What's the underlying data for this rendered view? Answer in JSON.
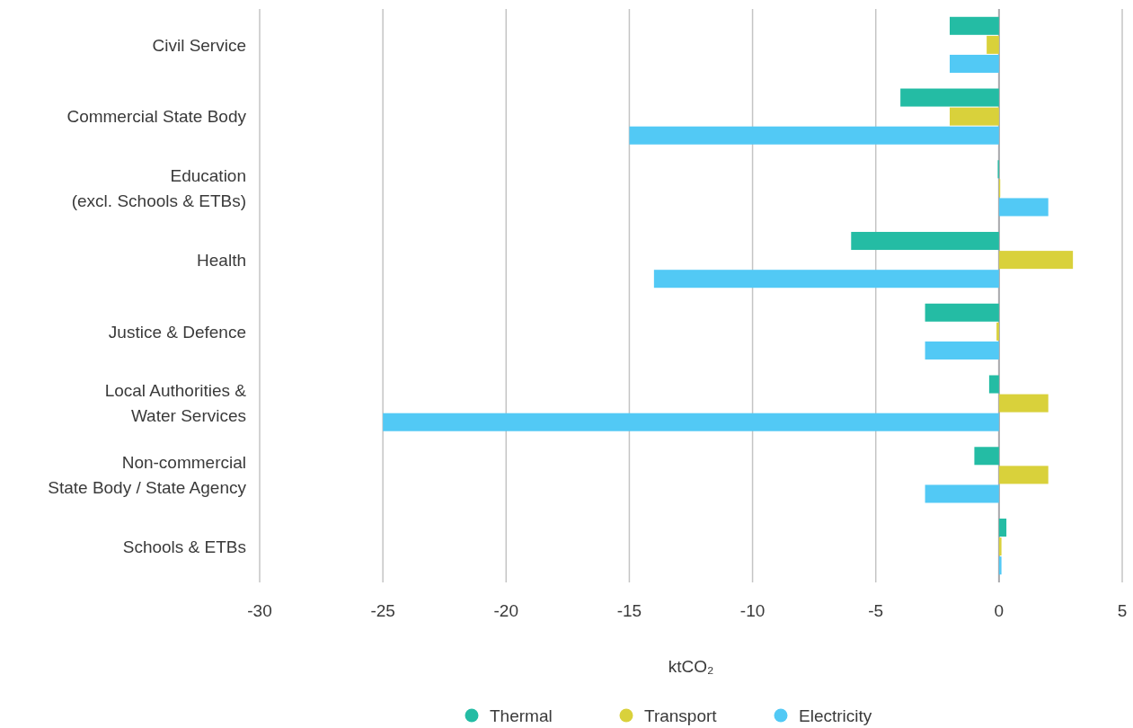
{
  "chart_data": {
    "type": "bar",
    "orientation": "horizontal",
    "categories": [
      "Civil Service",
      "Commercial State Body",
      "Education\n(excl. Schools & ETBs)",
      "Health",
      "Justice & Defence",
      "Local Authorities &\nWater Services",
      "Non-commercial\nState Body / State Agency",
      "Schools & ETBs"
    ],
    "series": [
      {
        "name": "Thermal",
        "color": "#24bca4",
        "values": [
          -2,
          -4,
          -0.05,
          -6,
          -3,
          -0.4,
          -1,
          0.3
        ]
      },
      {
        "name": "Transport",
        "color": "#d9d13b",
        "values": [
          -0.5,
          -2,
          0.05,
          3,
          -0.1,
          2,
          2,
          0.1
        ]
      },
      {
        "name": "Electricity",
        "color": "#52c9f5",
        "values": [
          -2,
          -15,
          2,
          -14,
          -3,
          -25,
          -3,
          0.1
        ]
      }
    ],
    "xlabel": "ktCO₂",
    "xlim": [
      -30,
      5
    ],
    "xticks": [
      -30,
      -25,
      -20,
      -15,
      -10,
      -5,
      0,
      5
    ],
    "grid": "x",
    "legend": "bottom"
  }
}
